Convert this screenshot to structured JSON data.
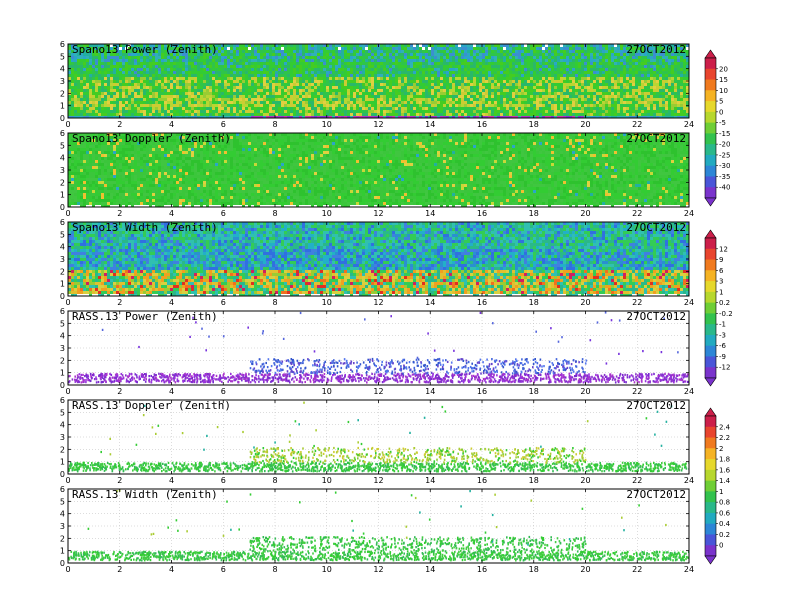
{
  "date": "27OCT2012",
  "x_axis": {
    "min": 0,
    "max": 24,
    "ticks": [
      0,
      2,
      4,
      6,
      8,
      10,
      12,
      14,
      16,
      18,
      20,
      22,
      24
    ]
  },
  "y_axis": {
    "min": 0,
    "max": 6,
    "ticks": [
      0,
      1,
      2,
      3,
      4,
      5,
      6
    ]
  },
  "colorbars": [
    {
      "id": "power",
      "labels": [
        "20",
        "15",
        "10",
        "5",
        "0",
        "-5",
        "-15",
        "-20",
        "-25",
        "-30",
        "-35",
        "-40"
      ]
    },
    {
      "id": "width",
      "labels": [
        "12",
        "9",
        "6",
        "3",
        "1",
        "0.2",
        "-0.2",
        "-1",
        "-3",
        "-6",
        "-9",
        "-12"
      ]
    },
    {
      "id": "doppler",
      "labels": [
        "2.4",
        "2.2",
        "2",
        "1.8",
        "1.6",
        "1.4",
        "1",
        "0.8",
        "0.6",
        "0.4",
        "0.2",
        "0"
      ]
    }
  ],
  "chart_data": [
    {
      "type": "heatmap",
      "title": "Spano13 Power (Zenith)",
      "date": "27OCT2012",
      "x_range": [
        0,
        24
      ],
      "y_range": [
        0,
        6
      ],
      "grid": true,
      "colorbar": "power",
      "layers": [
        {
          "y_from": 0.0,
          "y_to": 0.4,
          "dominant": "purple/magenta (low)"
        },
        {
          "y_from": 0.4,
          "y_to": 1.0,
          "dominant": "green"
        },
        {
          "y_from": 1.0,
          "y_to": 2.2,
          "dominant": "yellow-green (high)"
        },
        {
          "y_from": 2.2,
          "y_to": 3.5,
          "dominant": "yellow/green band"
        },
        {
          "y_from": 3.5,
          "y_to": 6.0,
          "dominant": "green to cyan"
        }
      ]
    },
    {
      "type": "heatmap",
      "title": "Spano13 Doppler (Zenith)",
      "date": "27OCT2012",
      "x_range": [
        0,
        24
      ],
      "y_range": [
        0,
        6
      ],
      "grid": true,
      "colorbar": "doppler",
      "layers": [
        {
          "y_from": 0.2,
          "y_to": 6.0,
          "dominant": "green with yellow speckles"
        }
      ]
    },
    {
      "type": "heatmap",
      "title": "Spano13 Width (Zenith)",
      "date": "27OCT2012",
      "x_range": [
        0,
        24
      ],
      "y_range": [
        0,
        6
      ],
      "grid": true,
      "colorbar": "width",
      "layers": [
        {
          "y_from": 0.4,
          "y_to": 2.5,
          "dominant": "yellow/orange with red spots"
        },
        {
          "y_from": 2.5,
          "y_to": 4.0,
          "dominant": "green to blue"
        },
        {
          "y_from": 4.0,
          "y_to": 6.0,
          "dominant": "cyan/green"
        }
      ]
    },
    {
      "type": "scatter",
      "title": "RASS.13 Power (Zenith)",
      "date": "27OCT2012",
      "x_range": [
        0,
        24
      ],
      "y_range": [
        0,
        6
      ],
      "grid": true,
      "colorbar": "width",
      "bands": [
        {
          "x_from": 0,
          "x_to": 24,
          "y_from": 0.3,
          "y_to": 1.0,
          "color": "purple"
        },
        {
          "x_from": 7,
          "x_to": 20,
          "y_from": 1.0,
          "y_to": 2.2,
          "color": "blue"
        }
      ]
    },
    {
      "type": "scatter",
      "title": "RASS.13 Doppler (Zenith)",
      "date": "27OCT2012",
      "x_range": [
        0,
        24
      ],
      "y_range": [
        0,
        6
      ],
      "grid": true,
      "colorbar": "doppler",
      "bands": [
        {
          "x_from": 0,
          "x_to": 24,
          "y_from": 0.3,
          "y_to": 1.0,
          "color": "green"
        },
        {
          "x_from": 7,
          "x_to": 20,
          "y_from": 1.0,
          "y_to": 2.2,
          "color": "yellow-green"
        }
      ]
    },
    {
      "type": "scatter",
      "title": "RASS.13 Width (Zenith)",
      "date": "27OCT2012",
      "x_range": [
        0,
        24
      ],
      "y_range": [
        0,
        6
      ],
      "grid": true,
      "colorbar": "doppler",
      "bands": [
        {
          "x_from": 0,
          "x_to": 24,
          "y_from": 0.3,
          "y_to": 1.0,
          "color": "green"
        },
        {
          "x_from": 7,
          "x_to": 20,
          "y_from": 1.0,
          "y_to": 2.2,
          "color": "green"
        }
      ]
    }
  ]
}
